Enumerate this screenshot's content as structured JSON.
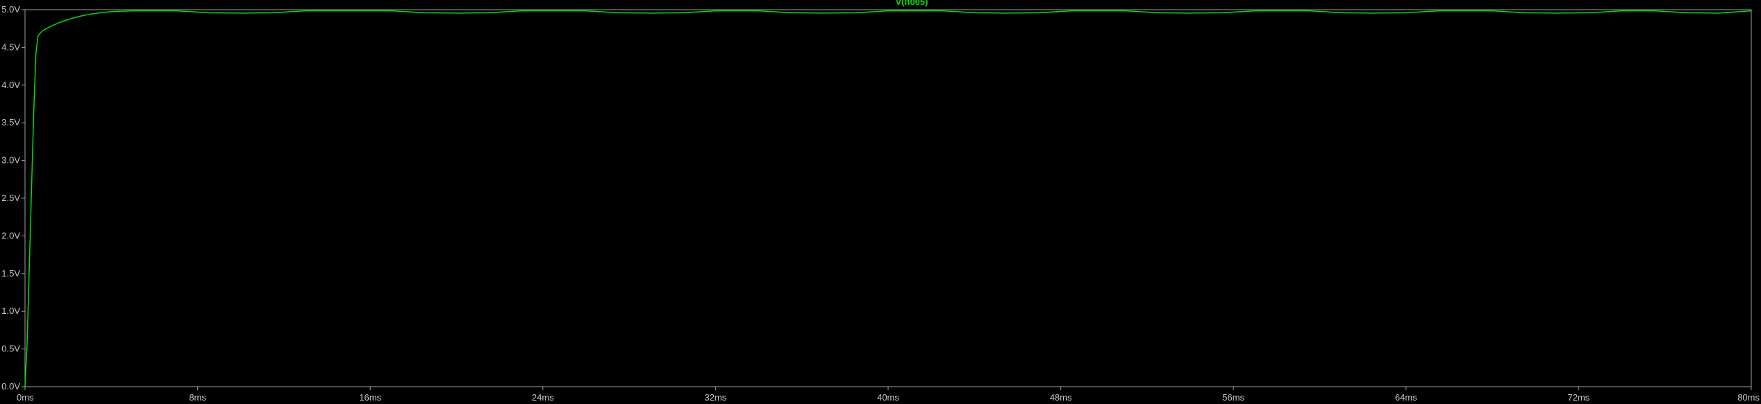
{
  "chart_data": {
    "type": "line",
    "title": "",
    "xlabel": "",
    "ylabel": "",
    "xlim": [
      0,
      80
    ],
    "ylim": [
      0,
      5
    ],
    "grid": false,
    "x_unit": "ms",
    "y_unit": "V",
    "x_ticks": [
      {
        "value": 0,
        "label": "0ms"
      },
      {
        "value": 8,
        "label": "8ms"
      },
      {
        "value": 16,
        "label": "16ms"
      },
      {
        "value": 24,
        "label": "24ms"
      },
      {
        "value": 32,
        "label": "32ms"
      },
      {
        "value": 40,
        "label": "40ms"
      },
      {
        "value": 48,
        "label": "48ms"
      },
      {
        "value": 56,
        "label": "56ms"
      },
      {
        "value": 64,
        "label": "64ms"
      },
      {
        "value": 72,
        "label": "72ms"
      },
      {
        "value": 80,
        "label": "80ms"
      }
    ],
    "y_ticks": [
      {
        "value": 0.0,
        "label": "0.0V"
      },
      {
        "value": 0.5,
        "label": "0.5V"
      },
      {
        "value": 1.0,
        "label": "1.0V"
      },
      {
        "value": 1.5,
        "label": "1.5V"
      },
      {
        "value": 2.0,
        "label": "2.0V"
      },
      {
        "value": 2.5,
        "label": "2.5V"
      },
      {
        "value": 3.0,
        "label": "3.0V"
      },
      {
        "value": 3.5,
        "label": "3.5V"
      },
      {
        "value": 4.0,
        "label": "4.0V"
      },
      {
        "value": 4.5,
        "label": "4.5V"
      },
      {
        "value": 5.0,
        "label": "5.0V"
      }
    ],
    "series": [
      {
        "name": "V(n005)",
        "color": "#00e000",
        "points": [
          [
            0.0,
            0.0
          ],
          [
            0.1,
            0.6
          ],
          [
            0.2,
            1.6
          ],
          [
            0.3,
            2.6
          ],
          [
            0.4,
            3.6
          ],
          [
            0.5,
            4.4
          ],
          [
            0.6,
            4.65
          ],
          [
            0.8,
            4.72
          ],
          [
            1.2,
            4.78
          ],
          [
            1.6,
            4.83
          ],
          [
            2.0,
            4.87
          ],
          [
            2.5,
            4.91
          ],
          [
            3.0,
            4.94
          ],
          [
            3.5,
            4.96
          ],
          [
            4.0,
            4.975
          ],
          [
            5.0,
            4.985
          ],
          [
            7.0,
            4.985
          ],
          [
            8.5,
            4.96
          ],
          [
            10.0,
            4.955
          ],
          [
            11.5,
            4.96
          ],
          [
            13.0,
            4.985
          ],
          [
            17.0,
            4.985
          ],
          [
            18.5,
            4.96
          ],
          [
            20.0,
            4.955
          ],
          [
            21.5,
            4.96
          ],
          [
            23.0,
            4.985
          ],
          [
            26.0,
            4.985
          ],
          [
            27.5,
            4.96
          ],
          [
            29.0,
            4.955
          ],
          [
            30.5,
            4.96
          ],
          [
            32.0,
            4.985
          ],
          [
            34.0,
            4.985
          ],
          [
            35.5,
            4.96
          ],
          [
            37.0,
            4.955
          ],
          [
            38.5,
            4.96
          ],
          [
            40.0,
            4.985
          ],
          [
            42.5,
            4.985
          ],
          [
            44.0,
            4.96
          ],
          [
            45.5,
            4.955
          ],
          [
            47.0,
            4.96
          ],
          [
            48.5,
            4.985
          ],
          [
            51.0,
            4.985
          ],
          [
            52.5,
            4.96
          ],
          [
            54.0,
            4.955
          ],
          [
            55.5,
            4.96
          ],
          [
            57.0,
            4.985
          ],
          [
            59.5,
            4.985
          ],
          [
            61.0,
            4.96
          ],
          [
            62.5,
            4.955
          ],
          [
            64.0,
            4.96
          ],
          [
            65.5,
            4.985
          ],
          [
            68.0,
            4.985
          ],
          [
            69.5,
            4.96
          ],
          [
            71.0,
            4.955
          ],
          [
            72.5,
            4.96
          ],
          [
            74.0,
            4.985
          ],
          [
            75.5,
            4.985
          ],
          [
            77.0,
            4.96
          ],
          [
            78.5,
            4.955
          ],
          [
            80.0,
            4.985
          ]
        ]
      }
    ]
  }
}
